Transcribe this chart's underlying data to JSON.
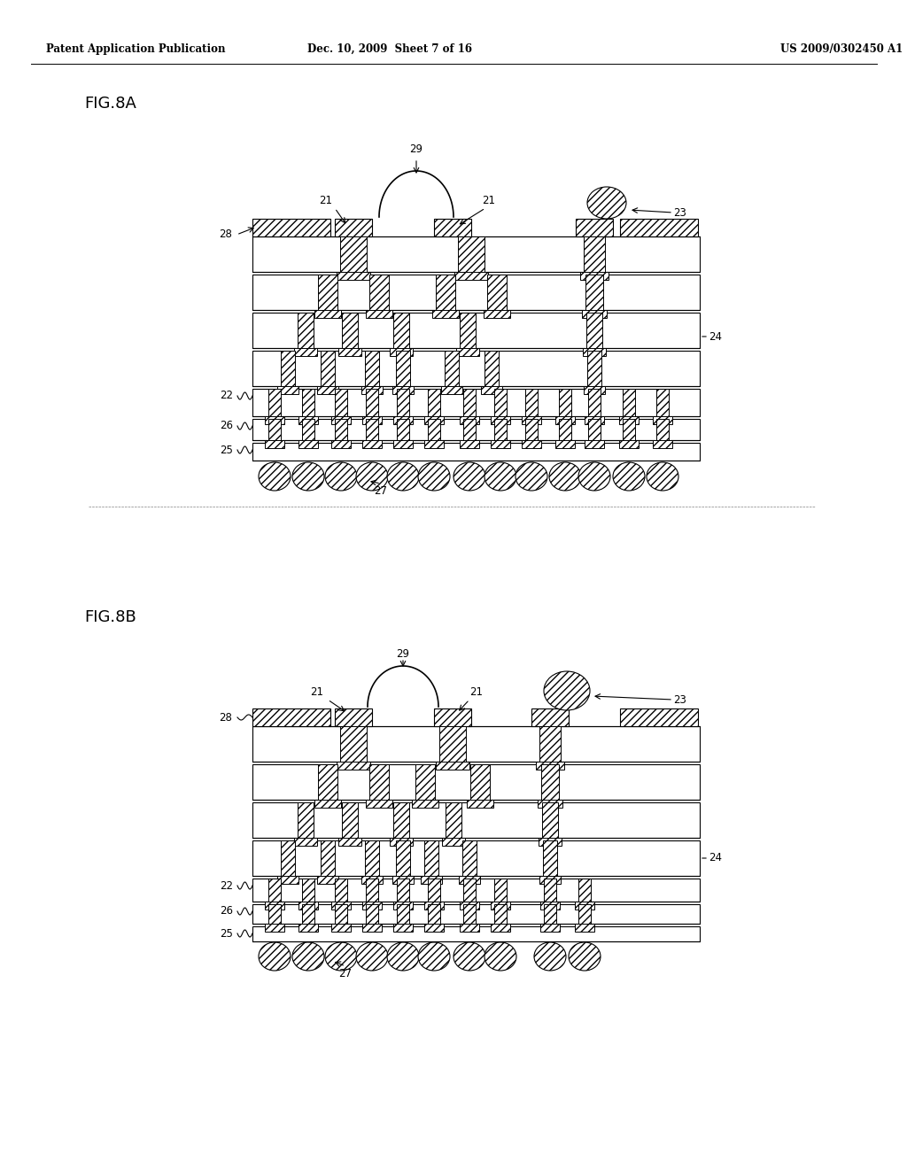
{
  "title_left": "Patent Application Publication",
  "title_mid": "Dec. 10, 2009  Sheet 7 of 16",
  "title_right": "US 2009/0302450 A1",
  "fig_a_label": "FIG.8A",
  "fig_b_label": "FIG.8B",
  "background_color": "#ffffff"
}
